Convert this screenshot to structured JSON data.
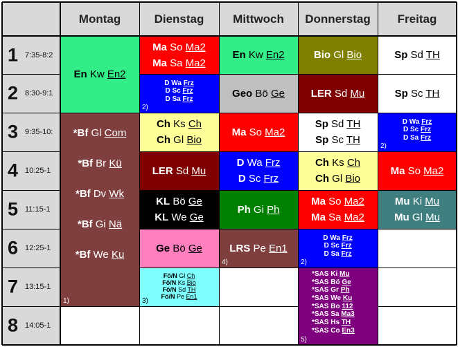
{
  "days": [
    "Montag",
    "Dienstag",
    "Mittwoch",
    "Donnerstag",
    "Freitag"
  ],
  "periods": [
    {
      "num": "1",
      "time": "7:35-8:2"
    },
    {
      "num": "2",
      "time": "8:30-9:1"
    },
    {
      "num": "3",
      "time": "9:35-10:"
    },
    {
      "num": "4",
      "time": "10:25-1"
    },
    {
      "num": "5",
      "time": "11:15-1"
    },
    {
      "num": "6",
      "time": "12:25-1"
    },
    {
      "num": "7",
      "time": "13:15-1"
    },
    {
      "num": "8",
      "time": "14:05-1"
    }
  ],
  "colors": {
    "green": "#33ee88",
    "red": "#ff0000",
    "blue": "#0000ff",
    "olive": "#808000",
    "darkred": "#7f0000",
    "brown": "#7f3f3f",
    "gray": "#bfbfbf",
    "yellow": "#ffff99",
    "darkgreen": "#008000",
    "black": "#000000",
    "teal": "#3f7f7f",
    "pink": "#ff7fbf",
    "cyan": "#80ffff",
    "purple": "#7f007f"
  },
  "lessons": {
    "mo_en": {
      "rows": [
        {
          "a": "En",
          "b": "Kw",
          "c": "En2"
        }
      ]
    },
    "mo_bf": {
      "rows": [
        {
          "a": "*Bf",
          "b": "Gl",
          "c": "Com"
        },
        {
          "a": "*Bf",
          "b": "Br",
          "c": "Kü"
        },
        {
          "a": "*Bf",
          "b": "Dv",
          "c": "Wk"
        },
        {
          "a": "*Bf",
          "b": "Gi",
          "c": "Nä"
        },
        {
          "a": "*Bf",
          "b": "We",
          "c": "Ku"
        }
      ],
      "note": "1)"
    },
    "di_ma": {
      "rows": [
        {
          "a": "Ma",
          "b": "So",
          "c": "Ma2"
        },
        {
          "a": "Ma",
          "b": "Sa",
          "c": "Ma2"
        }
      ]
    },
    "di_d": {
      "rows": [
        {
          "a": "D",
          "b": "Wa",
          "c": "Frz"
        },
        {
          "a": "D",
          "b": "Sc",
          "c": "Frz"
        },
        {
          "a": "D",
          "b": "Sa",
          "c": "Frz"
        }
      ],
      "note": "2)"
    },
    "di_ch": {
      "rows": [
        {
          "a": "Ch",
          "b": "Ks",
          "c": "Ch"
        },
        {
          "a": "Ch",
          "b": "Gl",
          "c": "Bio"
        }
      ]
    },
    "di_ler": {
      "rows": [
        {
          "a": "LER",
          "b": "Sd",
          "c": "Mu"
        }
      ]
    },
    "di_kl": {
      "rows": [
        {
          "a": "KL",
          "b": "Bö",
          "c": "Ge"
        },
        {
          "a": "KL",
          "b": "We",
          "c": "Ge"
        }
      ]
    },
    "di_ge": {
      "rows": [
        {
          "a": "Ge",
          "b": "Bö",
          "c": "Ge"
        }
      ]
    },
    "di_fo": {
      "rows": [
        {
          "a": "Fö/N",
          "b": "Gl",
          "c": "Ch"
        },
        {
          "a": "Fö/N",
          "b": "Ks",
          "c": "Bio"
        },
        {
          "a": "Fö/N",
          "b": "Sd",
          "c": "TH"
        },
        {
          "a": "Fö/N",
          "b": "Pe",
          "c": "En1"
        }
      ],
      "note": "3)"
    },
    "mi_en": {
      "rows": [
        {
          "a": "En",
          "b": "Kw",
          "c": "En2"
        }
      ]
    },
    "mi_geo": {
      "rows": [
        {
          "a": "Geo",
          "b": "Bö",
          "c": "Ge"
        }
      ]
    },
    "mi_ma": {
      "rows": [
        {
          "a": "Ma",
          "b": "So",
          "c": "Ma2"
        }
      ]
    },
    "mi_d": {
      "rows": [
        {
          "a": "D",
          "b": "Wa",
          "c": "Frz"
        },
        {
          "a": "D",
          "b": "Sc",
          "c": "Frz"
        }
      ]
    },
    "mi_ph": {
      "rows": [
        {
          "a": "Ph",
          "b": "Gi",
          "c": "Ph"
        }
      ]
    },
    "mi_lrs": {
      "rows": [
        {
          "a": "LRS",
          "b": "Pe",
          "c": "En1"
        }
      ],
      "note": "4)"
    },
    "do_bio": {
      "rows": [
        {
          "a": "Bio",
          "b": "Gl",
          "c": "Bio"
        }
      ]
    },
    "do_ler": {
      "rows": [
        {
          "a": "LER",
          "b": "Sd",
          "c": "Mu"
        }
      ]
    },
    "do_sp": {
      "rows": [
        {
          "a": "Sp",
          "b": "Sd",
          "c": "TH"
        },
        {
          "a": "Sp",
          "b": "Sc",
          "c": "TH"
        }
      ]
    },
    "do_ch": {
      "rows": [
        {
          "a": "Ch",
          "b": "Ks",
          "c": "Ch"
        },
        {
          "a": "Ch",
          "b": "Gl",
          "c": "Bio"
        }
      ]
    },
    "do_ma": {
      "rows": [
        {
          "a": "Ma",
          "b": "So",
          "c": "Ma2"
        },
        {
          "a": "Ma",
          "b": "Sa",
          "c": "Ma2"
        }
      ]
    },
    "do_d": {
      "rows": [
        {
          "a": "D",
          "b": "Wa",
          "c": "Frz"
        },
        {
          "a": "D",
          "b": "Sc",
          "c": "Frz"
        },
        {
          "a": "D",
          "b": "Sa",
          "c": "Frz"
        }
      ],
      "note": "2)"
    },
    "do_sas": {
      "rows": [
        {
          "a": "*SAS",
          "b": "Ki",
          "c": "Mu"
        },
        {
          "a": "*SAS",
          "b": "Bö",
          "c": "Ge"
        },
        {
          "a": "*SAS",
          "b": "Gr",
          "c": "Ph"
        },
        {
          "a": "*SAS",
          "b": "We",
          "c": "Ku"
        },
        {
          "a": "*SAS",
          "b": "Bo",
          "c": "112"
        },
        {
          "a": "*SAS",
          "b": "Sa",
          "c": "Ma3"
        },
        {
          "a": "*SAS",
          "b": "Hs",
          "c": "TH"
        },
        {
          "a": "*SAS",
          "b": "Co",
          "c": "En3"
        }
      ],
      "note": "5)"
    },
    "fr_sp1": {
      "rows": [
        {
          "a": "Sp",
          "b": "Sd",
          "c": "TH"
        }
      ]
    },
    "fr_sp2": {
      "rows": [
        {
          "a": "Sp",
          "b": "Sc",
          "c": "TH"
        }
      ]
    },
    "fr_d": {
      "rows": [
        {
          "a": "D",
          "b": "Wa",
          "c": "Frz"
        },
        {
          "a": "D",
          "b": "Sc",
          "c": "Frz"
        },
        {
          "a": "D",
          "b": "Sa",
          "c": "Frz"
        }
      ],
      "note": "2)"
    },
    "fr_ma": {
      "rows": [
        {
          "a": "Ma",
          "b": "So",
          "c": "Ma2"
        }
      ]
    },
    "fr_mu": {
      "rows": [
        {
          "a": "Mu",
          "b": "Ki",
          "c": "Mu"
        },
        {
          "a": "Mu",
          "b": "Gl",
          "c": "Mu"
        }
      ]
    }
  }
}
